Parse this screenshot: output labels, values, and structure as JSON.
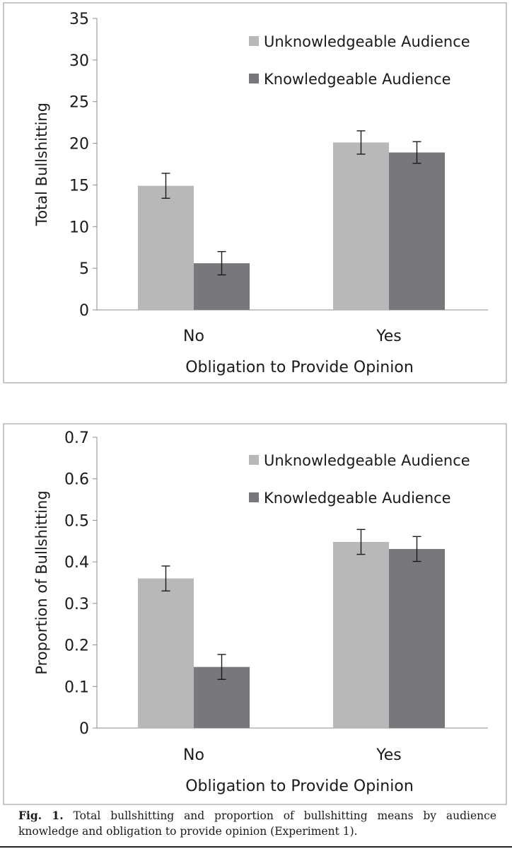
{
  "caption": {
    "label": "Fig. 1.",
    "text": "Total bullshitting and proportion of bullshitting means by audience knowledge and obligation to provide opinion (Experiment 1)."
  },
  "colors": {
    "unknowledgeable": "#b8b8b8",
    "knowledgeable": "#78787c",
    "axis": "#8c8c8c",
    "errorbar": "#1a1a1a"
  },
  "chart_data": [
    {
      "type": "bar",
      "categories": [
        "No",
        "Yes"
      ],
      "series": [
        {
          "name": "Unknowledgeable Audience",
          "values": [
            14.9,
            20.1
          ],
          "errors": [
            1.5,
            1.4
          ]
        },
        {
          "name": "Knowledgeable Audience",
          "values": [
            5.6,
            18.9
          ],
          "errors": [
            1.4,
            1.3
          ]
        }
      ],
      "xlabel": "Obligation to Provide Opinion",
      "ylabel": "Total Bullshitting",
      "ylim": [
        0,
        35
      ],
      "yticks": [
        "0",
        "5",
        "10",
        "15",
        "20",
        "25",
        "30",
        "35"
      ],
      "grid": false,
      "legend": "top-right"
    },
    {
      "type": "bar",
      "categories": [
        "No",
        "Yes"
      ],
      "series": [
        {
          "name": "Unknowledgeable Audience",
          "values": [
            0.36,
            0.448
          ],
          "errors": [
            0.03,
            0.03
          ]
        },
        {
          "name": "Knowledgeable Audience",
          "values": [
            0.147,
            0.431
          ],
          "errors": [
            0.03,
            0.03
          ]
        }
      ],
      "xlabel": "Obligation to Provide Opinion",
      "ylabel": "Proportion of Bullshitting",
      "ylim": [
        0,
        0.7
      ],
      "yticks": [
        "0",
        "0.1",
        "0.2",
        "0.3",
        "0.4",
        "0.5",
        "0.6",
        "0.7"
      ],
      "grid": false,
      "legend": "top-right"
    }
  ]
}
